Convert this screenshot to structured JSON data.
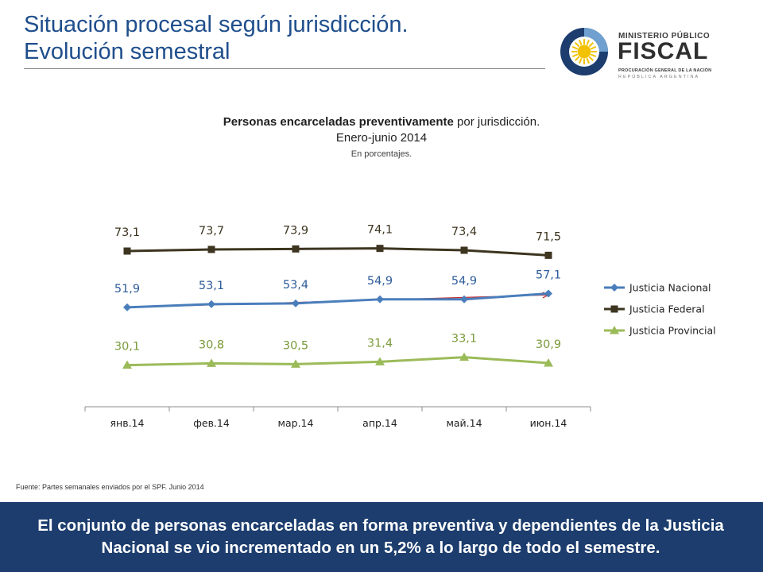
{
  "header": {
    "title_line1": "Situación procesal según jurisdicción.",
    "title_line2": "Evolución semestral"
  },
  "logo": {
    "line1": "MINISTERIO PÚBLICO",
    "line2": "FISCAL",
    "line3": "PROCURACIÓN GENERAL DE LA NACIÓN",
    "line4": "REPÚBLICA ARGENTINA",
    "colors": {
      "ring": "#1c3d6e",
      "sun": "#f2c200",
      "sky": "#ffffff"
    }
  },
  "chart_title": {
    "bold": "Personas encarceladas preventivamente",
    "rest": " por jurisdicción.",
    "line2": "Enero-junio 2014",
    "line3": "En porcentajes."
  },
  "chart_data": {
    "type": "line",
    "categories": [
      "янв.14",
      "фев.14",
      "мар.14",
      "апр.14",
      "май.14",
      "июн.14"
    ],
    "series": [
      {
        "name": "Justicia Nacional",
        "values": [
          51.9,
          53.1,
          53.4,
          54.9,
          54.9,
          57.1
        ],
        "labels": [
          "51,9",
          "53,1",
          "53,4",
          "54,9",
          "54,9",
          "57,1"
        ],
        "color": "#4a7ebb",
        "label_color": "#2e5c9a",
        "marker": "diamond"
      },
      {
        "name": "Justicia Federal",
        "values": [
          73.1,
          73.7,
          73.9,
          74.1,
          73.4,
          71.5
        ],
        "labels": [
          "73,1",
          "73,7",
          "73,9",
          "74,1",
          "73,4",
          "71,5"
        ],
        "color": "#3d3520",
        "label_color": "#3d3520",
        "marker": "square"
      },
      {
        "name": "Justicia Provincial",
        "values": [
          30.1,
          30.8,
          30.5,
          31.4,
          33.1,
          30.9
        ],
        "labels": [
          "30,1",
          "30,8",
          "30,5",
          "31,4",
          "33,1",
          "30,9"
        ],
        "color": "#9bbb59",
        "label_color": "#7a9a3a",
        "marker": "triangle"
      }
    ],
    "trendline": {
      "series": "Justicia Nacional",
      "color": "#c0282d"
    },
    "legend_position": "right",
    "grid": false,
    "x_axis": {
      "ticks": true
    },
    "y_axis": {
      "visible": false
    }
  },
  "source": "Fuente: Partes semanales enviados por el SPF. Junio 2014",
  "footer": {
    "text": "El conjunto de personas encarceladas en forma preventiva y dependientes de la Justicia Nacional se vio incrementado en un 5,2% a lo largo de todo el semestre."
  }
}
